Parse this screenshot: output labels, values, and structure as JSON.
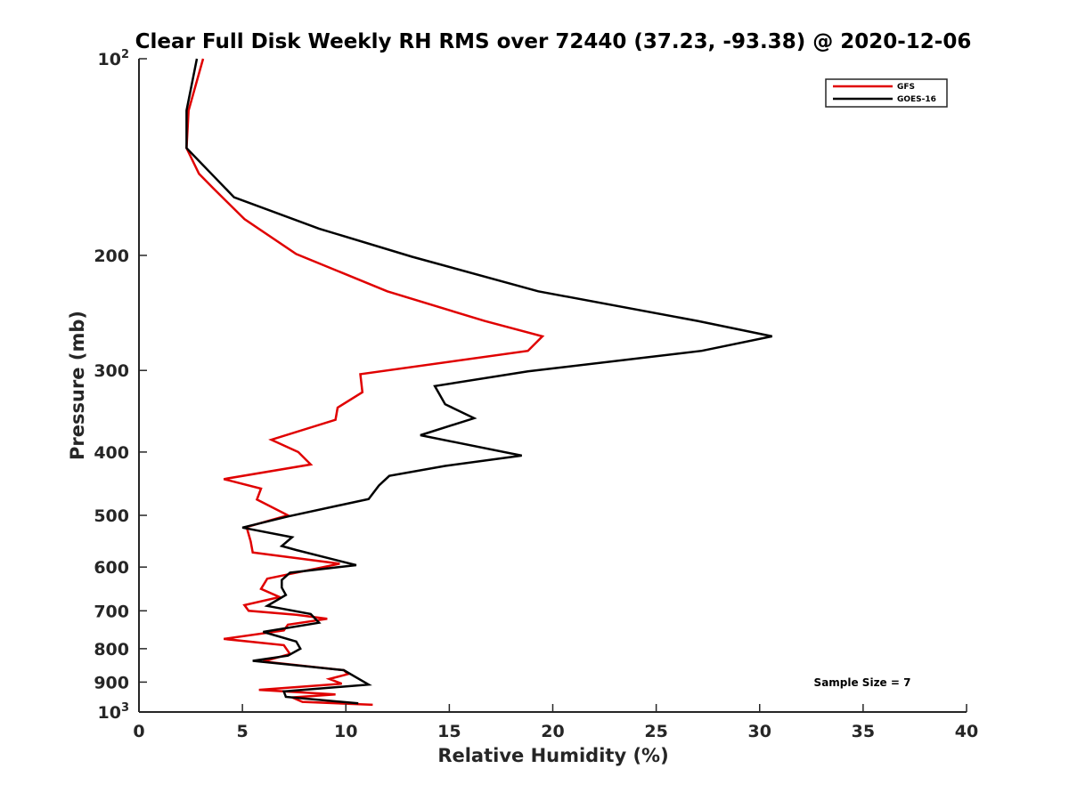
{
  "chart_data": {
    "type": "line",
    "title": "Clear Full Disk Weekly RH RMS over 72440 (37.23, -93.38) @ 2020-12-06",
    "xlabel": "Relative Humidity (%)",
    "ylabel": "Pressure (mb)",
    "xlim": [
      0,
      40
    ],
    "ylim": [
      100,
      1000
    ],
    "yscale": "log",
    "y_reversed": true,
    "grid": false,
    "legend_position": "top-right",
    "x_ticks": [
      "0",
      "5",
      "10",
      "15",
      "20",
      "25",
      "30",
      "35",
      "40"
    ],
    "y_ticks": [
      {
        "value": 100,
        "base": "10",
        "exp": "2"
      },
      {
        "value": 200,
        "label": "200"
      },
      {
        "value": 300,
        "label": "300"
      },
      {
        "value": 400,
        "label": "400"
      },
      {
        "value": 500,
        "label": "500"
      },
      {
        "value": 600,
        "label": "600"
      },
      {
        "value": 700,
        "label": "700"
      },
      {
        "value": 800,
        "label": "800"
      },
      {
        "value": 900,
        "label": "900"
      },
      {
        "value": 1000,
        "base": "10",
        "exp": "3"
      }
    ],
    "series": [
      {
        "name": "GFS",
        "color": "#e00000",
        "points": [
          [
            3.1,
            100
          ],
          [
            2.4,
            120
          ],
          [
            2.3,
            137
          ],
          [
            2.9,
            150
          ],
          [
            3.6,
            158
          ],
          [
            5.1,
            176
          ],
          [
            7.6,
            199
          ],
          [
            12.0,
            227
          ],
          [
            16.7,
            252
          ],
          [
            19.5,
            266
          ],
          [
            18.8,
            280
          ],
          [
            10.7,
            304
          ],
          [
            10.8,
            324
          ],
          [
            9.6,
            342
          ],
          [
            9.5,
            357
          ],
          [
            6.4,
            383
          ],
          [
            7.7,
            400
          ],
          [
            8.3,
            418
          ],
          [
            4.1,
            440
          ],
          [
            5.9,
            455
          ],
          [
            5.7,
            473
          ],
          [
            7.2,
            500
          ],
          [
            5.2,
            521
          ],
          [
            5.4,
            548
          ],
          [
            5.5,
            570
          ],
          [
            9.7,
            593
          ],
          [
            6.2,
            625
          ],
          [
            5.9,
            648
          ],
          [
            6.8,
            667
          ],
          [
            5.1,
            686
          ],
          [
            5.3,
            700
          ],
          [
            7.6,
            710
          ],
          [
            9.1,
            720
          ],
          [
            7.2,
            735
          ],
          [
            7.0,
            750
          ],
          [
            4.1,
            773
          ],
          [
            7.0,
            790
          ],
          [
            7.3,
            815
          ],
          [
            6.0,
            837
          ],
          [
            9.9,
            863
          ],
          [
            10.1,
            875
          ],
          [
            9.2,
            890
          ],
          [
            9.8,
            905
          ],
          [
            5.8,
            925
          ],
          [
            9.5,
            940
          ],
          [
            7.4,
            950
          ],
          [
            7.9,
            965
          ],
          [
            11.3,
            975
          ]
        ]
      },
      {
        "name": "GOES-16",
        "color": "#000000",
        "points": [
          [
            2.8,
            100
          ],
          [
            2.3,
            120
          ],
          [
            2.3,
            137
          ],
          [
            4.6,
            163
          ],
          [
            8.7,
            182
          ],
          [
            13.2,
            201
          ],
          [
            19.3,
            227
          ],
          [
            27.0,
            252
          ],
          [
            30.6,
            266
          ],
          [
            27.2,
            280
          ],
          [
            18.8,
            301
          ],
          [
            14.3,
            317
          ],
          [
            14.8,
            338
          ],
          [
            16.2,
            355
          ],
          [
            13.6,
            377
          ],
          [
            18.5,
            405
          ],
          [
            14.8,
            420
          ],
          [
            12.1,
            435
          ],
          [
            11.6,
            450
          ],
          [
            11.1,
            472
          ],
          [
            7.2,
            502
          ],
          [
            5.0,
            522
          ],
          [
            7.4,
            540
          ],
          [
            6.9,
            557
          ],
          [
            7.6,
            565
          ],
          [
            10.5,
            596
          ],
          [
            7.3,
            612
          ],
          [
            6.9,
            628
          ],
          [
            6.9,
            645
          ],
          [
            7.1,
            662
          ],
          [
            6.2,
            688
          ],
          [
            8.3,
            708
          ],
          [
            8.7,
            730
          ],
          [
            6.0,
            754
          ],
          [
            7.6,
            780
          ],
          [
            7.8,
            800
          ],
          [
            7.2,
            820
          ],
          [
            5.5,
            835
          ],
          [
            9.9,
            863
          ],
          [
            11.1,
            908
          ],
          [
            7.0,
            930
          ],
          [
            7.1,
            948
          ],
          [
            10.6,
            970
          ]
        ]
      }
    ],
    "annotations": [
      "Sample Size = 7"
    ]
  }
}
